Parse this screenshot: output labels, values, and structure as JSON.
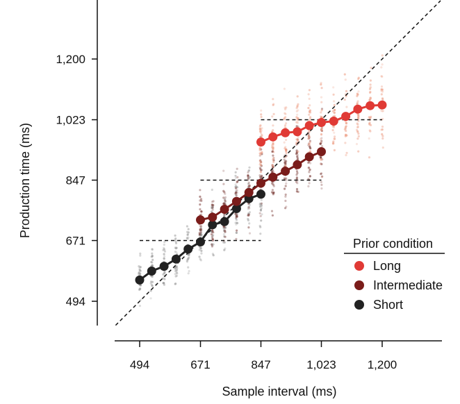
{
  "chart_data": {
    "type": "scatter",
    "xlabel": "Sample interval (ms)",
    "ylabel": "Production time (ms)",
    "xticks": [
      "494",
      "671",
      "847",
      "1,023",
      "1,200"
    ],
    "yticks": [
      "494",
      "671",
      "847",
      "1,023",
      "1,200"
    ],
    "x_tick_values": [
      494,
      671,
      847,
      1023,
      1200
    ],
    "y_tick_values": [
      494,
      671,
      847,
      1023,
      1200
    ],
    "xlim": [
      420,
      1300
    ],
    "ylim": [
      430,
      1370
    ],
    "legend": {
      "title": "Prior condition",
      "placement": "bottom-right",
      "entries": [
        {
          "label": "Long",
          "color": "#e03a35"
        },
        {
          "label": "Intermediate",
          "color": "#7a1c1a"
        },
        {
          "label": "Short",
          "color": "#222222"
        }
      ]
    },
    "series": [
      {
        "name": "Short",
        "color": "#222222",
        "scatter_color": "#8c8c8c",
        "x": [
          494,
          529,
          565,
          600,
          635,
          671,
          706,
          741,
          776,
          812,
          847
        ],
        "y": [
          556,
          582,
          596,
          617,
          646,
          667,
          717,
          726,
          764,
          793,
          806
        ]
      },
      {
        "name": "Intermediate",
        "color": "#7a1c1a",
        "scatter_color": "#7a3a36",
        "x": [
          671,
          706,
          741,
          776,
          812,
          847,
          882,
          918,
          953,
          988,
          1023
        ],
        "y": [
          731,
          739,
          762,
          785,
          811,
          838,
          856,
          873,
          892,
          915,
          930
        ]
      },
      {
        "name": "Long",
        "color": "#e03a35",
        "scatter_color": "#ec9a80",
        "x": [
          847,
          882,
          918,
          953,
          988,
          1023,
          1059,
          1094,
          1129,
          1165,
          1200
        ],
        "y": [
          958,
          973,
          985,
          988,
          1006,
          1015,
          1019,
          1033,
          1054,
          1064,
          1066
        ]
      }
    ],
    "prior_means": [
      {
        "series": "Short",
        "x_range": [
          494,
          847
        ],
        "y": 671
      },
      {
        "series": "Intermediate",
        "x_range": [
          671,
          1023
        ],
        "y": 847
      },
      {
        "series": "Long",
        "x_range": [
          847,
          1200
        ],
        "y": 1023
      }
    ],
    "identity_line": true,
    "grid": false
  }
}
